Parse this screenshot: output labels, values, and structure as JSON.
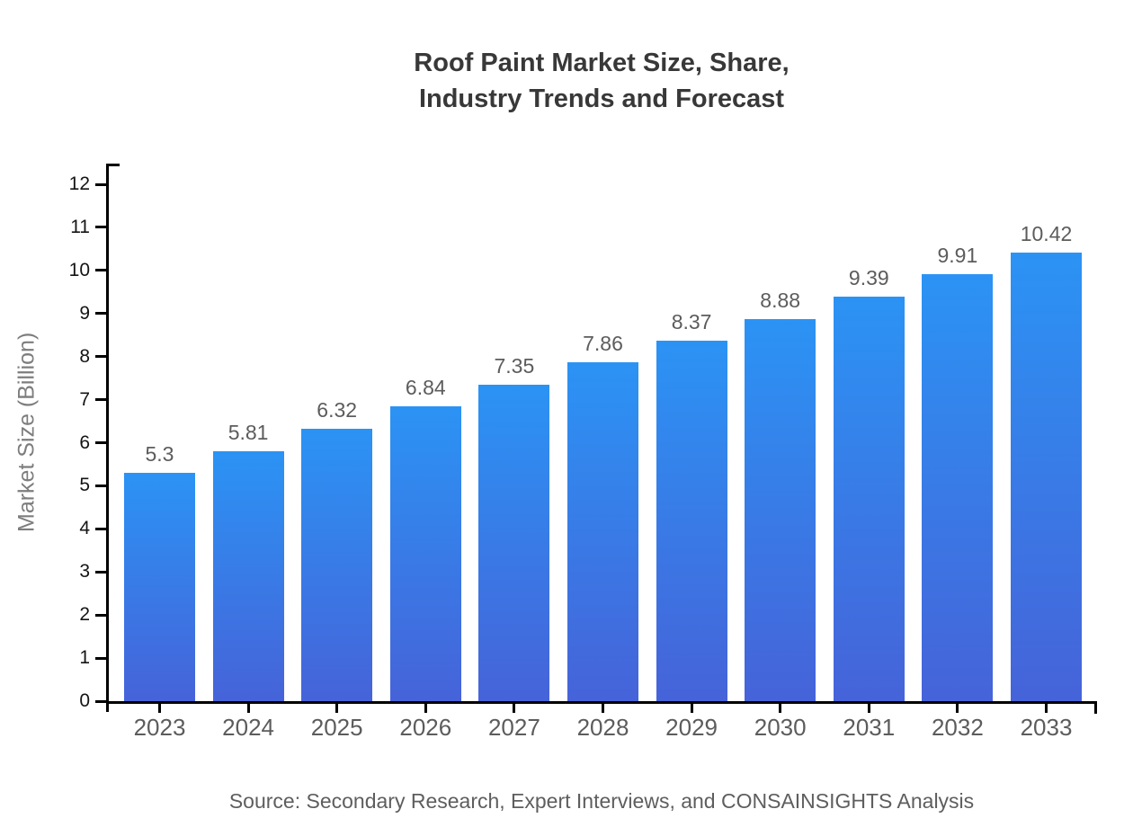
{
  "title": "Roof Paint Market Size, Share,\nIndustry Trends and Forecast",
  "source": "Source: Secondary Research, Expert Interviews, and CONSAINSIGHTS Analysis",
  "chart_data": {
    "type": "bar",
    "title": "Roof Paint Market Size, Share, Industry Trends and Forecast",
    "categories": [
      "2023",
      "2024",
      "2025",
      "2026",
      "2027",
      "2028",
      "2029",
      "2030",
      "2031",
      "2032",
      "2033"
    ],
    "values": [
      5.3,
      5.81,
      6.32,
      6.84,
      7.35,
      7.86,
      8.37,
      8.88,
      9.39,
      9.91,
      10.42
    ],
    "value_labels": [
      "5.3",
      "5.81",
      "6.32",
      "6.84",
      "7.35",
      "7.86",
      "8.37",
      "8.88",
      "9.39",
      "9.91",
      "10.42"
    ],
    "xlabel": "",
    "ylabel": "Market Size (Billion)",
    "ylim": [
      0,
      12
    ],
    "yticks": [
      0,
      1,
      2,
      3,
      4,
      5,
      6,
      7,
      8,
      9,
      10,
      11,
      12
    ],
    "grid": false,
    "legend": null,
    "colors": {
      "bar_gradient_top": "#2b93f4",
      "bar_gradient_bottom": "#4663d9",
      "axis": "#000000",
      "title_text": "#383838",
      "label_text": "#5c5c5c",
      "tick_text": "#141414",
      "axis_title_text": "#7d7d7d"
    }
  }
}
